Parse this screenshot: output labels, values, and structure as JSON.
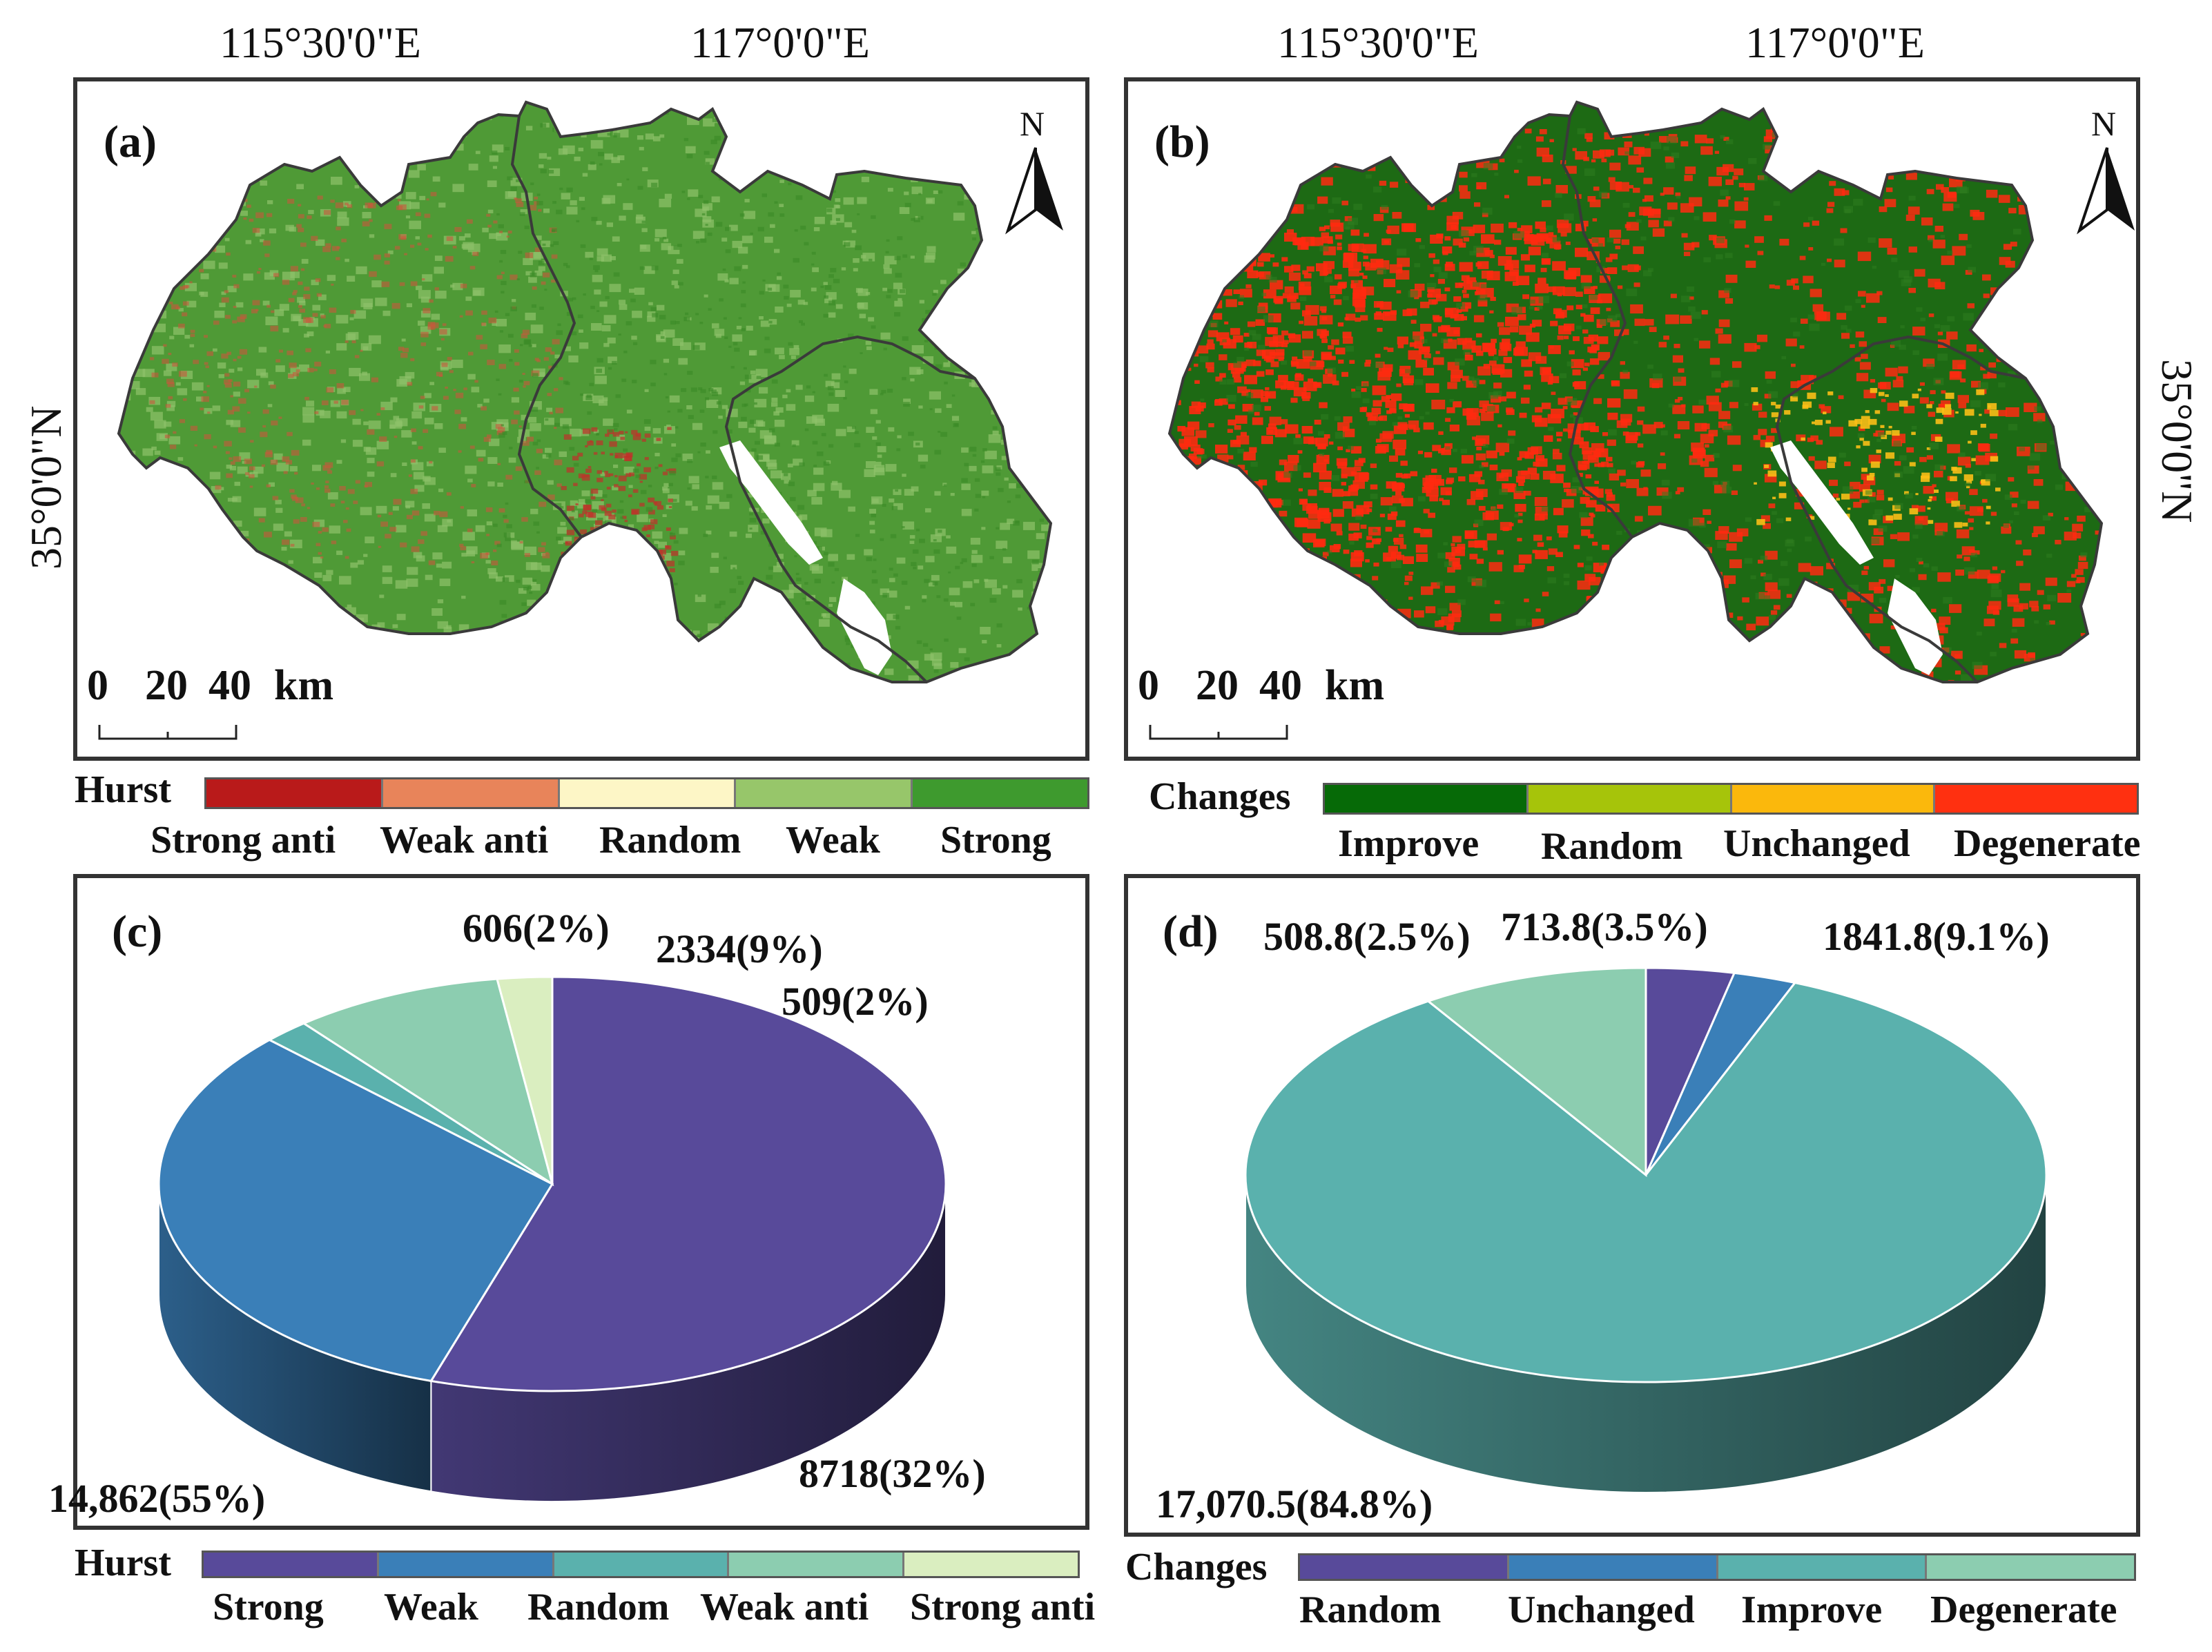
{
  "coords": {
    "lon1": "115°30'0\"E",
    "lon2": "117°0'0\"E",
    "lat": "35°0'0\"N"
  },
  "panels": {
    "a": {
      "tag": "(a)"
    },
    "b": {
      "tag": "(b)"
    },
    "c": {
      "tag": "(c)"
    },
    "d": {
      "tag": "(d)"
    }
  },
  "north": "N",
  "scale": {
    "n0": "0",
    "n20": "20",
    "n40": "40",
    "unit": "km"
  },
  "legend_a": {
    "title": "Hurst",
    "colors": [
      "#b91a1a",
      "#e8845a",
      "#fdf6c6",
      "#97c66a",
      "#3e9a2e"
    ],
    "labels": [
      "Strong anti",
      "Weak anti",
      "Random",
      "Weak",
      "Strong"
    ]
  },
  "legend_b": {
    "title": "Changes",
    "colors": [
      "#066a07",
      "#a6c40a",
      "#fbb80c",
      "#ff3010"
    ],
    "labels": [
      "Improve",
      "Random",
      "Unchanged",
      "Degenerate"
    ]
  },
  "map_colors": {
    "a_base": "#4f9a36",
    "a_light": "#8fc26a",
    "a_red": "#c8583c",
    "b_base": "#1d6a14",
    "b_red": "#ff2a10",
    "b_yellow": "#fbbf16",
    "border": "#3a3a3a"
  },
  "chart_data": [
    {
      "type": "pie",
      "panel": "c",
      "slices": [
        {
          "name": "Strong",
          "value": 14862,
          "percent": 55,
          "label": "14,862(55%)",
          "color": "#584a9a"
        },
        {
          "name": "Weak",
          "value": 8718,
          "percent": 32,
          "label": "8718(32%)",
          "color": "#3a7fb8"
        },
        {
          "name": "Random",
          "value": 509,
          "percent": 2,
          "label": "509(2%)",
          "color": "#5ab1ad"
        },
        {
          "name": "Weak anti",
          "value": 2334,
          "percent": 9,
          "label": "2334(9%)",
          "color": "#8ccdb0"
        },
        {
          "name": "Strong anti",
          "value": 606,
          "percent": 2,
          "label": "606(2%)",
          "color": "#daeec0"
        }
      ],
      "legend": {
        "title": "Hurst",
        "entries": [
          "Strong",
          "Weak",
          "Random",
          "Weak anti",
          "Strong anti"
        ],
        "placement": "bottom"
      }
    },
    {
      "type": "pie",
      "panel": "d",
      "slices": [
        {
          "name": "Random",
          "value": 713.8,
          "percent": 3.5,
          "label": "713.8(3.5%)",
          "color": "#584a9a"
        },
        {
          "name": "Unchanged",
          "value": 508.8,
          "percent": 2.5,
          "label": "508.8(2.5%)",
          "color": "#3a7fb8"
        },
        {
          "name": "Improve",
          "value": 17070.5,
          "percent": 84.8,
          "label": "17,070.5(84.8%)",
          "color": "#5ab1ad"
        },
        {
          "name": "Degenerate",
          "value": 1841.8,
          "percent": 9.1,
          "label": "1841.8(9.1%)",
          "color": "#8ccdb0"
        }
      ],
      "legend": {
        "title": "Changes",
        "entries": [
          "Random",
          "Unchanged",
          "Improve",
          "Degenerate"
        ],
        "placement": "bottom"
      }
    }
  ]
}
